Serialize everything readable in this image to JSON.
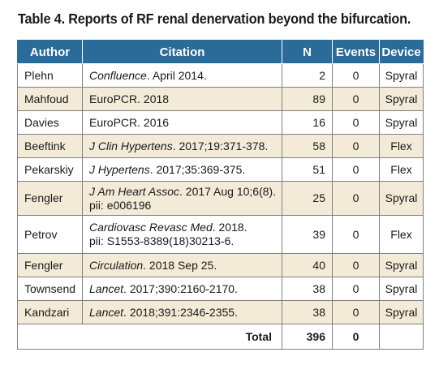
{
  "title": "Table 4. Reports of RF renal denervation beyond the bifurcation.",
  "columns": {
    "author": "Author",
    "citation": "Citation",
    "n": "N",
    "events": "Events",
    "device": "Device"
  },
  "rows": [
    {
      "author": "Plehn",
      "journal": "Confluence",
      "rest": ". April 2014.",
      "rest2": "",
      "n": "2",
      "events": "0",
      "device": "Spyral"
    },
    {
      "author": "Mahfoud",
      "journal": "",
      "rest": "EuroPCR. 2018",
      "rest2": "",
      "n": "89",
      "events": "0",
      "device": "Spyral"
    },
    {
      "author": "Davies",
      "journal": "",
      "rest": "EuroPCR. 2016",
      "rest2": "",
      "n": "16",
      "events": "0",
      "device": "Spyral"
    },
    {
      "author": "Beeftink",
      "journal": "J Clin Hypertens",
      "rest": ". 2017;19:371-378.",
      "rest2": "",
      "n": "58",
      "events": "0",
      "device": "Flex"
    },
    {
      "author": "Pekarskiy",
      "journal": "J Hypertens",
      "rest": ". 2017;35:369-375.",
      "rest2": "",
      "n": "51",
      "events": "0",
      "device": "Flex"
    },
    {
      "author": "Fengler",
      "journal": "J Am Heart Assoc",
      "rest": ". 2017 Aug 10;6(8).",
      "rest2": "pii: e006196",
      "n": "25",
      "events": "0",
      "device": "Spyral"
    },
    {
      "author": "Petrov",
      "journal": "Cardiovasc Revasc Med",
      "rest": ". 2018.",
      "rest2": "pii: S1553-8389(18)30213-6.",
      "n": "39",
      "events": "0",
      "device": "Flex"
    },
    {
      "author": "Fengler",
      "journal": "Circulation",
      "rest": ". 2018 Sep 25.",
      "rest2": "",
      "n": "40",
      "events": "0",
      "device": "Spyral"
    },
    {
      "author": "Townsend",
      "journal": "Lancet",
      "rest": ". 2017;390:2160-2170.",
      "rest2": "",
      "n": "38",
      "events": "0",
      "device": "Spyral"
    },
    {
      "author": "Kandzari",
      "journal": "Lancet",
      "rest": ". 2018;391:2346-2355.",
      "rest2": "",
      "n": "38",
      "events": "0",
      "device": "Spyral"
    }
  ],
  "total": {
    "label": "Total",
    "n": "396",
    "events": "0"
  }
}
